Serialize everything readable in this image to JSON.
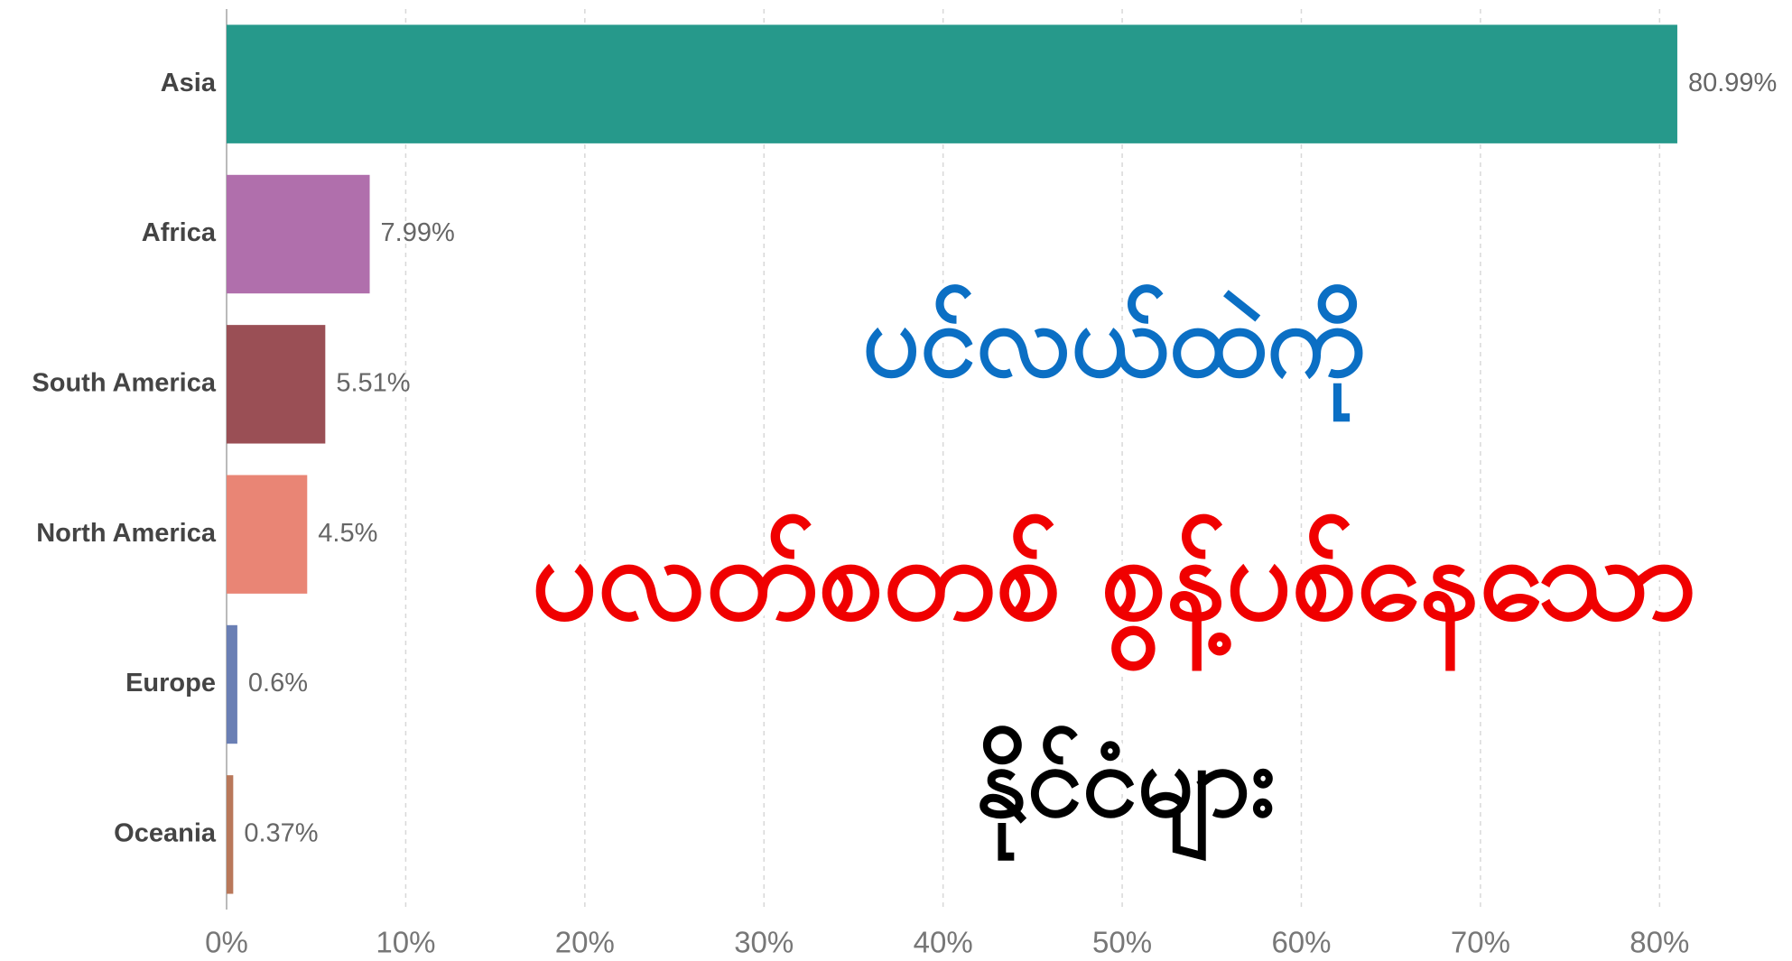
{
  "chart_data": {
    "type": "bar",
    "orientation": "horizontal",
    "categories": [
      "Asia",
      "Africa",
      "South America",
      "North America",
      "Europe",
      "Oceania"
    ],
    "values": [
      80.99,
      7.99,
      5.51,
      4.5,
      0.6,
      0.37
    ],
    "value_labels": [
      "80.99%",
      "7.99%",
      "5.51%",
      "4.5%",
      "0.6%",
      "0.37%"
    ],
    "colors": [
      "#26998b",
      "#b06fac",
      "#9a4f55",
      "#e98575",
      "#6a7fb4",
      "#b9785a"
    ],
    "xlim": [
      0,
      82
    ],
    "xticks": [
      {
        "value": 0,
        "label": "0%"
      },
      {
        "value": 10,
        "label": "10%"
      },
      {
        "value": 20,
        "label": "20%"
      },
      {
        "value": 30,
        "label": "30%"
      },
      {
        "value": 40,
        "label": "40%"
      },
      {
        "value": 50,
        "label": "50%"
      },
      {
        "value": 60,
        "label": "60%"
      },
      {
        "value": 70,
        "label": "70%"
      },
      {
        "value": 80,
        "label": "80%"
      }
    ],
    "grid": true,
    "annotations": [
      {
        "text": "ပင်လယ်ထဲကို",
        "color": "#0b6fc4"
      },
      {
        "text": "ပလတ်စတစ် စွန့်ပစ်နေသော",
        "color": "#f00000"
      },
      {
        "text": "နိုင်ငံများ",
        "color": "#000000"
      }
    ]
  }
}
